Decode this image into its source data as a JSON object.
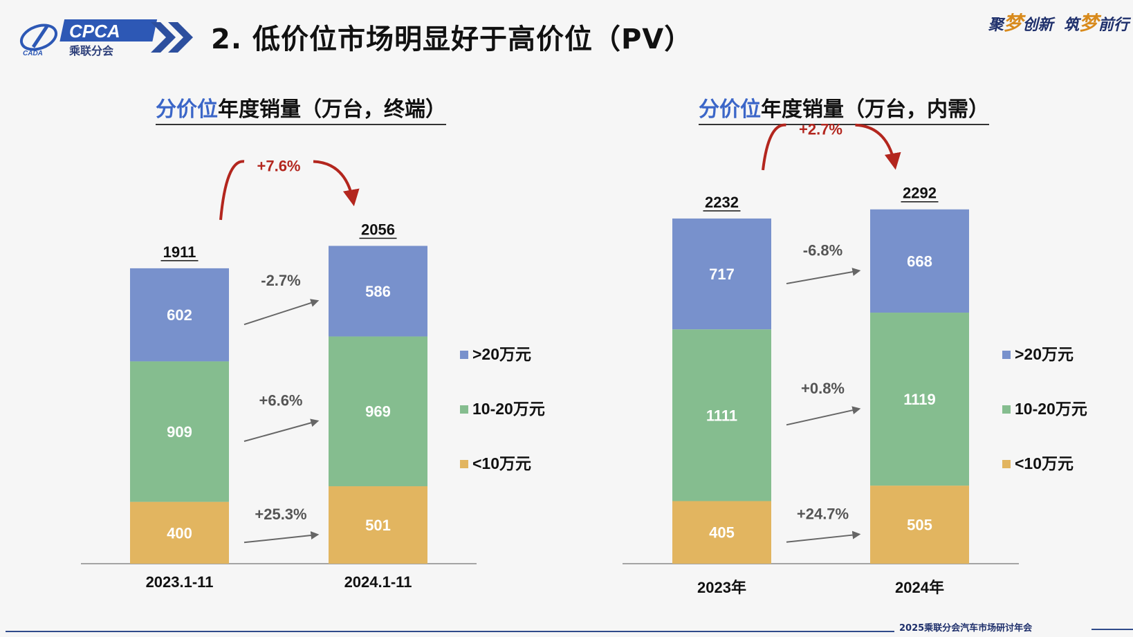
{
  "header": {
    "logo_text": "CPCA",
    "logo_subtext": "乘联分会",
    "logo_small": "CADA",
    "title": "2. 低价位市场明显好于高价位（PV）",
    "slogan_1": "聚",
    "slogan_2": "梦",
    "slogan_3": "创新",
    "slogan_4": "筑",
    "slogan_5": "梦",
    "slogan_6": "前行"
  },
  "footer": {
    "text": "2025乘联分会汽车市场研讨年会"
  },
  "colors": {
    "above_20": "#7891cc",
    "mid_10_20": "#85bd8f",
    "below_10": "#e2b560",
    "growth_arrow": "#b3261e",
    "axis": "#888888",
    "trend_arrow": "#666666"
  },
  "chart_data": [
    {
      "type": "bar",
      "stacked": true,
      "title_highlight": "分价位",
      "title": "年度销量（万台，终端）",
      "categories": [
        "2023.1-11",
        "2024.1-11"
      ],
      "series": [
        {
          "name": "<10万元",
          "values": [
            400,
            501
          ],
          "change": "+25.3%"
        },
        {
          "name": "10-20万元",
          "values": [
            909,
            969
          ],
          "change": "+6.6%"
        },
        {
          "name": ">20万元",
          "values": [
            602,
            586
          ],
          "change": "-2.7%"
        }
      ],
      "totals": [
        1911,
        2056
      ],
      "total_change": "+7.6%",
      "legend": [
        ">20万元",
        "10-20万元",
        "<10万元"
      ],
      "legend_position": "right",
      "grid": false
    },
    {
      "type": "bar",
      "stacked": true,
      "title_highlight": "分价位",
      "title": "年度销量（万台，内需）",
      "categories": [
        "2023年",
        "2024年"
      ],
      "series": [
        {
          "name": "<10万元",
          "values": [
            405,
            505
          ],
          "change": "+24.7%"
        },
        {
          "name": "10-20万元",
          "values": [
            1111,
            1119
          ],
          "change": "+0.8%"
        },
        {
          "name": ">20万元",
          "values": [
            717,
            668
          ],
          "change": "-6.8%"
        }
      ],
      "totals": [
        2232,
        2292
      ],
      "total_change": "+2.7%",
      "legend": [
        ">20万元",
        "10-20万元",
        "<10万元"
      ],
      "legend_position": "right",
      "grid": false
    }
  ]
}
